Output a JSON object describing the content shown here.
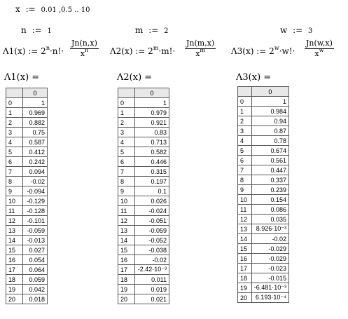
{
  "range_def": {
    "var": "x",
    "assign": ":=",
    "expr": "0.01 ,0.5 .. 10"
  },
  "params": [
    {
      "name": "n",
      "value": "1"
    },
    {
      "name": "m",
      "value": "2"
    },
    {
      "name": "w",
      "value": "3"
    }
  ],
  "functions": [
    {
      "lhs": "Λ1(x) :=",
      "factor": "2",
      "exp": "n",
      "mid": "·n!·",
      "num": "Jn(n,x)",
      "den": "x",
      "den_exp": "n"
    },
    {
      "lhs": "Λ2(x) :=",
      "factor": "2",
      "exp": "m",
      "mid": "·m!·",
      "num": "Jn(m,x)",
      "den": "x",
      "den_exp": "m"
    },
    {
      "lhs": "Λ3(x) :=",
      "factor": "2",
      "exp": "w",
      "mid": "·w!·",
      "num": "Jn(w,x)",
      "den": "x",
      "den_exp": "w"
    }
  ],
  "tables": [
    {
      "title": "Λ1(x) =",
      "col_header": "0",
      "rows": [
        "1",
        "0.969",
        "0.882",
        "0.75",
        "0.587",
        "0.412",
        "0.242",
        "0.094",
        "-0.02",
        "-0.094",
        "-0.129",
        "-0.128",
        "-0.101",
        "-0.059",
        "-0.013",
        "0.027",
        "0.054",
        "0.064",
        "0.059",
        "0.042",
        "0.018"
      ]
    },
    {
      "title": "Λ2(x) =",
      "col_header": "0",
      "rows": [
        "1",
        "0.979",
        "0.921",
        "0.83",
        "0.713",
        "0.582",
        "0.446",
        "0.315",
        "0.197",
        "0.1",
        "0.026",
        "-0.024",
        "-0.051",
        "-0.059",
        "-0.052",
        "-0.038",
        "-0.02",
        "-2.42·10⁻³",
        "0.011",
        "0.019",
        "0.021"
      ]
    },
    {
      "title": "Λ3(x) =",
      "col_header": "0",
      "rows": [
        "1",
        "0.984",
        "0.94",
        "0.87",
        "0.78",
        "0.674",
        "0.561",
        "0.447",
        "0.337",
        "0.239",
        "0.154",
        "0.086",
        "0.035",
        "8.926·10⁻³",
        "-0.02",
        "-0.029",
        "-0.029",
        "-0.023",
        "-0.015",
        "-6.481·10⁻³",
        "6.193·10⁻⁴"
      ]
    }
  ]
}
